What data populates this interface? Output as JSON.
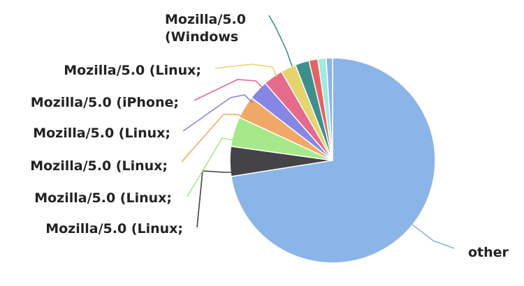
{
  "chart_data": {
    "type": "pie",
    "start_angle_deg": 0,
    "direction": "clockwise",
    "slices": [
      {
        "label": "other",
        "label_lines": [
          "other"
        ],
        "value": 72.5,
        "color": "#8BB4E8"
      },
      {
        "label": "Mozilla/5.0 (Linux;",
        "label_lines": [
          "Mozilla/5.0 (Linux;"
        ],
        "value": 4.7,
        "color": "#444448"
      },
      {
        "label": "Mozilla/5.0 (Linux;",
        "label_lines": [
          "Mozilla/5.0 (Linux;"
        ],
        "value": 4.7,
        "color": "#A6E98A"
      },
      {
        "label": "Mozilla/5.0 (Linux;",
        "label_lines": [
          "Mozilla/5.0 (Linux;"
        ],
        "value": 3.6,
        "color": "#F1A866"
      },
      {
        "label": "Mozilla/5.0 (Linux;",
        "label_lines": [
          "Mozilla/5.0 (Linux;"
        ],
        "value": 3.1,
        "color": "#8686E6"
      },
      {
        "label": "Mozilla/5.0 (iPhone;",
        "label_lines": [
          "Mozilla/5.0 (iPhone;"
        ],
        "value": 3.1,
        "color": "#E46B8A"
      },
      {
        "label": "Mozilla/5.0 (Linux;",
        "label_lines": [
          "Mozilla/5.0 (Linux;"
        ],
        "value": 2.4,
        "color": "#E5D46E"
      },
      {
        "label": "Mozilla/5.0 (Windows",
        "label_lines": [
          "Mozilla/5.0",
          "(Windows"
        ],
        "value": 2.2,
        "color": "#3E8F8C"
      },
      {
        "label": "",
        "label_lines": [],
        "value": 1.4,
        "color": "#E26565"
      },
      {
        "label": "",
        "label_lines": [],
        "value": 1.3,
        "color": "#A5E8DE"
      },
      {
        "label": "",
        "label_lines": [],
        "value": 1.0,
        "color": "#8BB4E8"
      }
    ]
  }
}
